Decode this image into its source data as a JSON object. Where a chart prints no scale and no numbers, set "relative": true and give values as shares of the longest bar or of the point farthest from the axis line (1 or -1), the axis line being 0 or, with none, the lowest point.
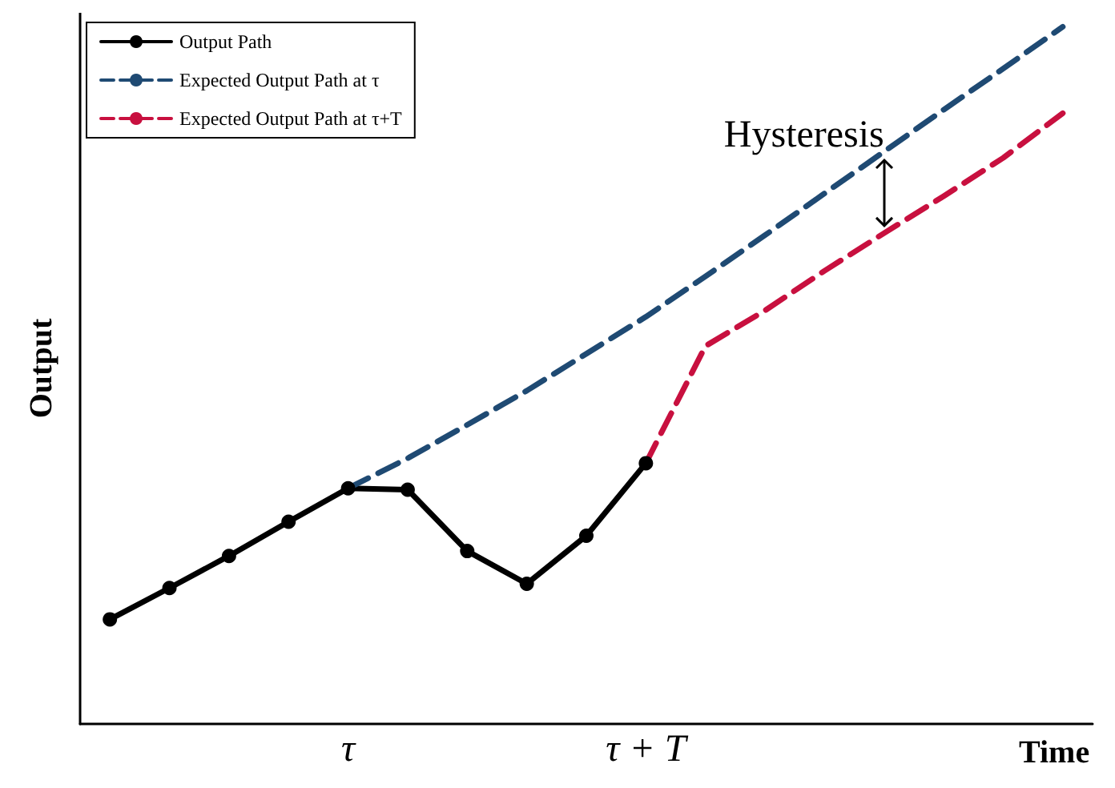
{
  "chart_data": {
    "type": "line",
    "relative": true,
    "xlabel": "Time",
    "ylabel": "Output",
    "annotations": [
      "Hysteresis"
    ],
    "legend": "top left",
    "grid": false,
    "categories": [
      null,
      null,
      null,
      null,
      "τ",
      null,
      null,
      null,
      null,
      "τ + T",
      null,
      null,
      null,
      null,
      null,
      null,
      null
    ],
    "series": [
      {
        "name": "Output Path",
        "color": "#000000",
        "marker": "circle",
        "line_style": "solid",
        "values": [
          0.15,
          0.195,
          0.241,
          0.29,
          0.338,
          0.336,
          0.248,
          0.201,
          0.27,
          0.374,
          null,
          null,
          null,
          null,
          null,
          null,
          null
        ]
      },
      {
        "name": "Expected Output Path at τ",
        "color": "#1f4a73",
        "marker": "none",
        "line_style": "dashed",
        "values": [
          null,
          null,
          null,
          null,
          0.338,
          0.381,
          0.429,
          0.478,
          0.531,
          0.584,
          0.642,
          0.701,
          0.761,
          0.821,
          0.881,
          0.94,
          1.0
        ]
      },
      {
        "name": "Expected Output Path at τ+T",
        "color": "#c8103f",
        "marker": "none",
        "line_style": "dashed",
        "values": [
          null,
          null,
          null,
          null,
          null,
          null,
          null,
          null,
          null,
          0.374,
          0.542,
          0.593,
          0.65,
          0.704,
          0.757,
          0.812,
          0.876
        ]
      }
    ]
  }
}
